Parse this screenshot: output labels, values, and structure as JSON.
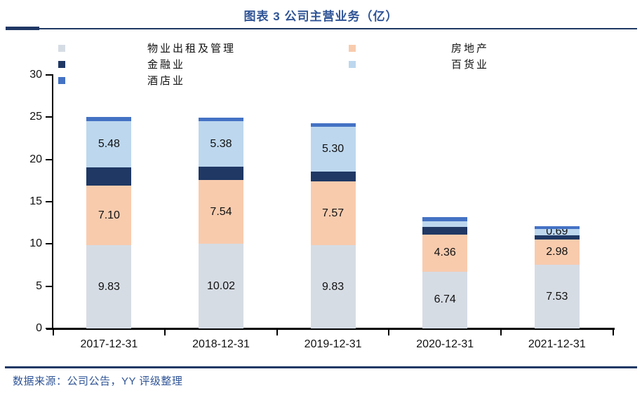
{
  "title": "图表 3 公司主营业务（亿）",
  "source": "数据来源：公司公告，YY 评级整理",
  "colors": {
    "title_text": "#2F5496",
    "divider_rule": "#1F3864",
    "axis": "#000000",
    "label_text": "#111111"
  },
  "chart_data": {
    "type": "bar",
    "subtype": "stacked",
    "title": "图表 3 公司主营业务（亿）",
    "xlabel": "",
    "ylabel": "",
    "ylim": [
      0,
      30
    ],
    "ytick_step": 5,
    "ytick_labels": [
      "0",
      "5",
      "10",
      "15",
      "20",
      "25",
      "30"
    ],
    "grid": false,
    "legend_position": "top",
    "legend_columns": [
      [
        0,
        2,
        4
      ],
      [
        1,
        3
      ]
    ],
    "categories": [
      "2017-12-31",
      "2018-12-31",
      "2019-12-31",
      "2020-12-31",
      "2021-12-31"
    ],
    "series": [
      {
        "name": "物业出租及管理",
        "color": "#D6DCE4",
        "values": [
          9.83,
          10.02,
          9.83,
          6.74,
          7.53
        ],
        "labels": [
          "9.83",
          "10.02",
          "9.83",
          "6.74",
          "7.53"
        ]
      },
      {
        "name": "房地产",
        "color": "#F8CBAD",
        "values": [
          7.1,
          7.54,
          7.57,
          4.36,
          2.98
        ],
        "labels": [
          "7.10",
          "7.54",
          "7.57",
          "4.36",
          "2.98"
        ]
      },
      {
        "name": "金融业",
        "color": "#1F3864",
        "values": [
          2.1,
          1.55,
          1.15,
          0.9,
          0.55
        ],
        "labels": [
          null,
          null,
          null,
          null,
          null
        ]
      },
      {
        "name": "百货业",
        "color": "#BDD7EE",
        "values": [
          5.48,
          5.38,
          5.3,
          0.7,
          0.69
        ],
        "labels": [
          "5.48",
          "5.38",
          "5.30",
          null,
          "0.69"
        ]
      },
      {
        "name": "酒店业",
        "color": "#4472C4",
        "values": [
          0.48,
          0.48,
          0.45,
          0.45,
          0.35
        ],
        "labels": [
          null,
          null,
          null,
          null,
          null
        ]
      }
    ]
  }
}
